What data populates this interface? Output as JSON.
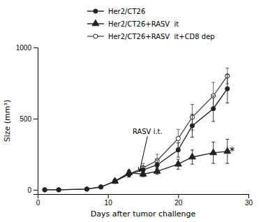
{
  "chart_data": {
    "type": "line",
    "xlabel": "Days after tumor challenge",
    "ylabel": "Size (mm³)",
    "xlim": [
      0,
      30
    ],
    "ylim": [
      -30,
      1000
    ],
    "xticks": [
      0,
      10,
      20,
      30
    ],
    "yticks": [
      0,
      500,
      1000
    ],
    "grid": false,
    "legend": "top",
    "annotations": [
      {
        "text": "RASV i.t.",
        "x": 13.5,
        "y": 390,
        "arrow_x": 14.5,
        "arrow_y": 130
      },
      {
        "text": "*",
        "x": 27.3,
        "y": 270
      }
    ],
    "series": [
      {
        "name": "Her2/CT26",
        "color": "#222222",
        "marker": "circle",
        "x": [
          1,
          3,
          7,
          9,
          11,
          13,
          15,
          17,
          20,
          22,
          25,
          27
        ],
        "values": [
          0,
          0,
          5,
          20,
          60,
          110,
          140,
          175,
          280,
          450,
          570,
          710
        ],
        "errors": [
          2,
          2,
          4,
          8,
          15,
          20,
          25,
          35,
          50,
          80,
          90,
          100
        ]
      },
      {
        "name": "Her2/CT26+RASV  it",
        "color": "#222222",
        "marker": "triangle",
        "x": [
          11,
          13,
          15,
          17,
          20,
          22,
          25,
          27
        ],
        "values": [
          60,
          120,
          110,
          130,
          180,
          230,
          260,
          270
        ],
        "errors": [
          12,
          18,
          18,
          22,
          35,
          50,
          75,
          85
        ]
      },
      {
        "name": "Her2/CT26+RASV  it+CD8 dep",
        "color": "#555555",
        "marker": "open-circle",
        "x": [
          1,
          3,
          7,
          9,
          11,
          13,
          15,
          17,
          20,
          22,
          25,
          27
        ],
        "values": [
          0,
          0,
          5,
          20,
          60,
          110,
          155,
          205,
          360,
          510,
          660,
          800
        ],
        "errors": [
          2,
          2,
          4,
          8,
          15,
          20,
          30,
          45,
          65,
          90,
          95,
          55
        ]
      }
    ]
  }
}
